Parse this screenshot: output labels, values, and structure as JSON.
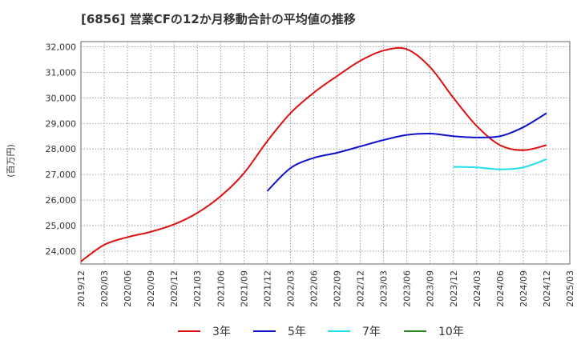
{
  "chart_data": {
    "type": "line",
    "title": "[6856]  営業CFの12か月移動合計の平均値の推移",
    "ylabel": "(百万円)",
    "xlabel": "",
    "ylim": [
      23500,
      32200
    ],
    "yticks": [
      24000,
      25000,
      26000,
      27000,
      28000,
      29000,
      30000,
      31000,
      32000
    ],
    "ytick_labels": [
      "24,000",
      "25,000",
      "26,000",
      "27,000",
      "28,000",
      "29,000",
      "30,000",
      "31,000",
      "32,000"
    ],
    "x_labels": [
      "2019/12",
      "2020/03",
      "2020/06",
      "2020/09",
      "2020/12",
      "2021/03",
      "2021/06",
      "2021/09",
      "2021/12",
      "2022/03",
      "2022/06",
      "2022/09",
      "2022/12",
      "2023/03",
      "2023/06",
      "2023/09",
      "2023/12",
      "2024/03",
      "2024/06",
      "2024/09",
      "2024/12",
      "2025/03"
    ],
    "grid": true,
    "legend_position": "bottom",
    "series": [
      {
        "name": "3年",
        "color": "#dd1111",
        "x": [
          "2019/12",
          "2020/03",
          "2020/06",
          "2020/09",
          "2020/12",
          "2021/03",
          "2021/06",
          "2021/09",
          "2021/12",
          "2022/03",
          "2022/06",
          "2022/09",
          "2022/12",
          "2023/03",
          "2023/06",
          "2023/09",
          "2023/12",
          "2024/03",
          "2024/06",
          "2024/09",
          "2024/12"
        ],
        "values": [
          23600,
          24250,
          24550,
          24760,
          25050,
          25500,
          26150,
          27050,
          28300,
          29400,
          30200,
          30850,
          31450,
          31850,
          31900,
          31200,
          30000,
          28900,
          28150,
          27950,
          28150
        ]
      },
      {
        "name": "5年",
        "color": "#1111cc",
        "x": [
          "2021/12",
          "2022/03",
          "2022/06",
          "2022/09",
          "2022/12",
          "2023/03",
          "2023/06",
          "2023/09",
          "2023/12",
          "2024/03",
          "2024/06",
          "2024/09",
          "2024/12"
        ],
        "values": [
          26350,
          27250,
          27650,
          27850,
          28100,
          28350,
          28550,
          28600,
          28500,
          28450,
          28500,
          28850,
          29400
        ]
      },
      {
        "name": "7年",
        "color": "#22ddee",
        "x": [
          "2023/12",
          "2024/03",
          "2024/06",
          "2024/09",
          "2024/12"
        ],
        "values": [
          27300,
          27280,
          27200,
          27280,
          27600
        ]
      },
      {
        "name": "10年",
        "color": "#228822",
        "x": [],
        "values": []
      }
    ]
  }
}
